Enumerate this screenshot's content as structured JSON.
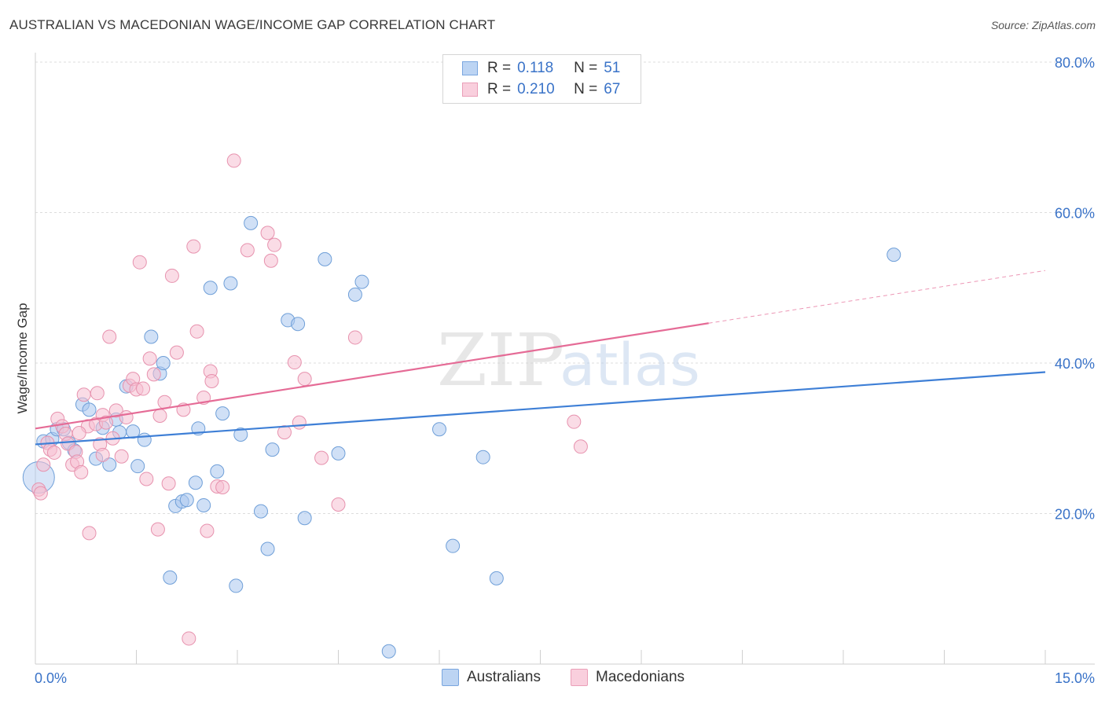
{
  "title": "AUSTRALIAN VS MACEDONIAN WAGE/INCOME GAP CORRELATION CHART",
  "source": "Source: ZipAtlas.com",
  "watermark": {
    "zip": "ZIP",
    "atlas": "atlas"
  },
  "legend_top": {
    "rows": [
      {
        "r_label": "R =",
        "r_value": "0.118",
        "n_label": "N =",
        "n_value": "51",
        "color": "#a9c6ef",
        "stroke": "#6f9fd8"
      },
      {
        "r_label": "R =",
        "r_value": "0.210",
        "n_label": "N =",
        "n_value": "67",
        "color": "#f6bfd1",
        "stroke": "#e792ae"
      }
    ]
  },
  "legend_bottom": {
    "items": [
      {
        "label": "Australians",
        "color": "#bcd4f3",
        "stroke": "#7aa6df"
      },
      {
        "label": "Macedonians",
        "color": "#f9cfdd",
        "stroke": "#ea9fb8"
      }
    ]
  },
  "chart_data": {
    "type": "scatter",
    "title": "AUSTRALIAN VS MACEDONIAN WAGE/INCOME GAP CORRELATION CHART",
    "xlabel": "",
    "ylabel": "Wage/Income Gap",
    "xlim": [
      0,
      15
    ],
    "ylim": [
      0,
      80
    ],
    "x_tick_labels": [
      "0.0%",
      "15.0%"
    ],
    "y_tick_labels": [
      "20.0%",
      "40.0%",
      "60.0%",
      "80.0%"
    ],
    "y_ticks": [
      20,
      40,
      60,
      80
    ],
    "grid": true,
    "legend_position": "top-center",
    "colors": {
      "australians": "#3e7fd6",
      "macedonians": "#e56b96",
      "axis_label": "#3a73c8"
    },
    "series": [
      {
        "name": "Australians",
        "fill": "#a9c6ef",
        "stroke": "#6f9fd8",
        "trend": {
          "x0": 0,
          "y0": 29.2,
          "x1": 15,
          "y1": 38.8,
          "solid_to": 15
        },
        "points": [
          [
            0.12,
            29.6
          ],
          [
            0.25,
            29.9
          ],
          [
            0.32,
            31.2
          ],
          [
            0.42,
            31.2
          ],
          [
            0.5,
            29.4
          ],
          [
            0.58,
            28.4
          ],
          [
            0.7,
            34.5
          ],
          [
            0.8,
            33.8
          ],
          [
            0.9,
            27.3
          ],
          [
            1.0,
            31.4
          ],
          [
            1.1,
            26.5
          ],
          [
            1.2,
            32.5
          ],
          [
            1.25,
            30.8
          ],
          [
            1.35,
            36.9
          ],
          [
            1.45,
            30.9
          ],
          [
            1.52,
            26.3
          ],
          [
            1.62,
            29.8
          ],
          [
            1.72,
            43.5
          ],
          [
            1.85,
            38.6
          ],
          [
            1.9,
            40.0
          ],
          [
            2.0,
            11.5
          ],
          [
            2.08,
            21.0
          ],
          [
            2.18,
            21.6
          ],
          [
            2.25,
            21.8
          ],
          [
            2.38,
            24.1
          ],
          [
            2.42,
            31.3
          ],
          [
            2.5,
            21.1
          ],
          [
            2.6,
            50.0
          ],
          [
            2.7,
            25.6
          ],
          [
            2.78,
            33.3
          ],
          [
            2.9,
            50.6
          ],
          [
            2.98,
            10.4
          ],
          [
            3.05,
            30.5
          ],
          [
            3.2,
            58.6
          ],
          [
            3.35,
            20.3
          ],
          [
            3.45,
            15.3
          ],
          [
            3.52,
            28.5
          ],
          [
            3.75,
            45.7
          ],
          [
            3.9,
            45.2
          ],
          [
            4.0,
            19.4
          ],
          [
            4.3,
            53.8
          ],
          [
            4.5,
            28.0
          ],
          [
            4.75,
            49.1
          ],
          [
            4.85,
            50.8
          ],
          [
            5.25,
            1.7
          ],
          [
            6.0,
            31.2
          ],
          [
            6.2,
            15.7
          ],
          [
            6.65,
            27.5
          ],
          [
            6.85,
            11.4
          ],
          [
            12.75,
            54.4
          ],
          [
            0.05,
            24.8
          ]
        ]
      },
      {
        "name": "Macedonians",
        "fill": "#f6bfd1",
        "stroke": "#e792ae",
        "trend": {
          "x0": 0,
          "y0": 31.3,
          "x1": 15,
          "y1": 52.3,
          "solid_to": 10.0
        },
        "points": [
          [
            0.05,
            23.2
          ],
          [
            0.08,
            22.7
          ],
          [
            0.12,
            26.5
          ],
          [
            0.18,
            29.4
          ],
          [
            0.22,
            28.5
          ],
          [
            0.28,
            28.1
          ],
          [
            0.33,
            32.6
          ],
          [
            0.4,
            31.6
          ],
          [
            0.45,
            30.6
          ],
          [
            0.48,
            29.3
          ],
          [
            0.55,
            26.5
          ],
          [
            0.6,
            28.2
          ],
          [
            0.62,
            26.9
          ],
          [
            0.68,
            25.5
          ],
          [
            0.72,
            35.8
          ],
          [
            0.78,
            31.6
          ],
          [
            0.8,
            17.4
          ],
          [
            0.9,
            31.9
          ],
          [
            0.92,
            36.0
          ],
          [
            0.96,
            29.2
          ],
          [
            1.0,
            33.1
          ],
          [
            1.05,
            32.1
          ],
          [
            1.1,
            43.5
          ],
          [
            1.15,
            30.0
          ],
          [
            1.2,
            33.7
          ],
          [
            1.28,
            27.6
          ],
          [
            1.35,
            32.8
          ],
          [
            1.4,
            37.0
          ],
          [
            1.45,
            37.9
          ],
          [
            1.5,
            36.5
          ],
          [
            1.55,
            53.4
          ],
          [
            1.6,
            36.6
          ],
          [
            1.65,
            24.6
          ],
          [
            1.7,
            40.6
          ],
          [
            1.76,
            38.5
          ],
          [
            1.82,
            17.9
          ],
          [
            1.85,
            33.0
          ],
          [
            1.92,
            34.8
          ],
          [
            1.98,
            24.0
          ],
          [
            2.03,
            51.6
          ],
          [
            2.1,
            41.4
          ],
          [
            2.2,
            33.8
          ],
          [
            2.28,
            3.4
          ],
          [
            2.35,
            55.5
          ],
          [
            2.4,
            44.2
          ],
          [
            2.5,
            35.4
          ],
          [
            2.55,
            17.7
          ],
          [
            2.6,
            38.9
          ],
          [
            2.62,
            37.6
          ],
          [
            2.7,
            23.6
          ],
          [
            2.78,
            23.5
          ],
          [
            2.95,
            66.9
          ],
          [
            3.15,
            55.0
          ],
          [
            3.45,
            57.3
          ],
          [
            3.5,
            53.6
          ],
          [
            3.55,
            55.7
          ],
          [
            3.7,
            30.8
          ],
          [
            3.85,
            40.1
          ],
          [
            3.92,
            32.1
          ],
          [
            4.0,
            37.9
          ],
          [
            4.25,
            27.4
          ],
          [
            4.5,
            21.2
          ],
          [
            4.75,
            43.4
          ],
          [
            8.0,
            32.2
          ],
          [
            8.1,
            28.9
          ],
          [
            0.65,
            30.7
          ],
          [
            1.0,
            27.8
          ]
        ]
      }
    ]
  }
}
